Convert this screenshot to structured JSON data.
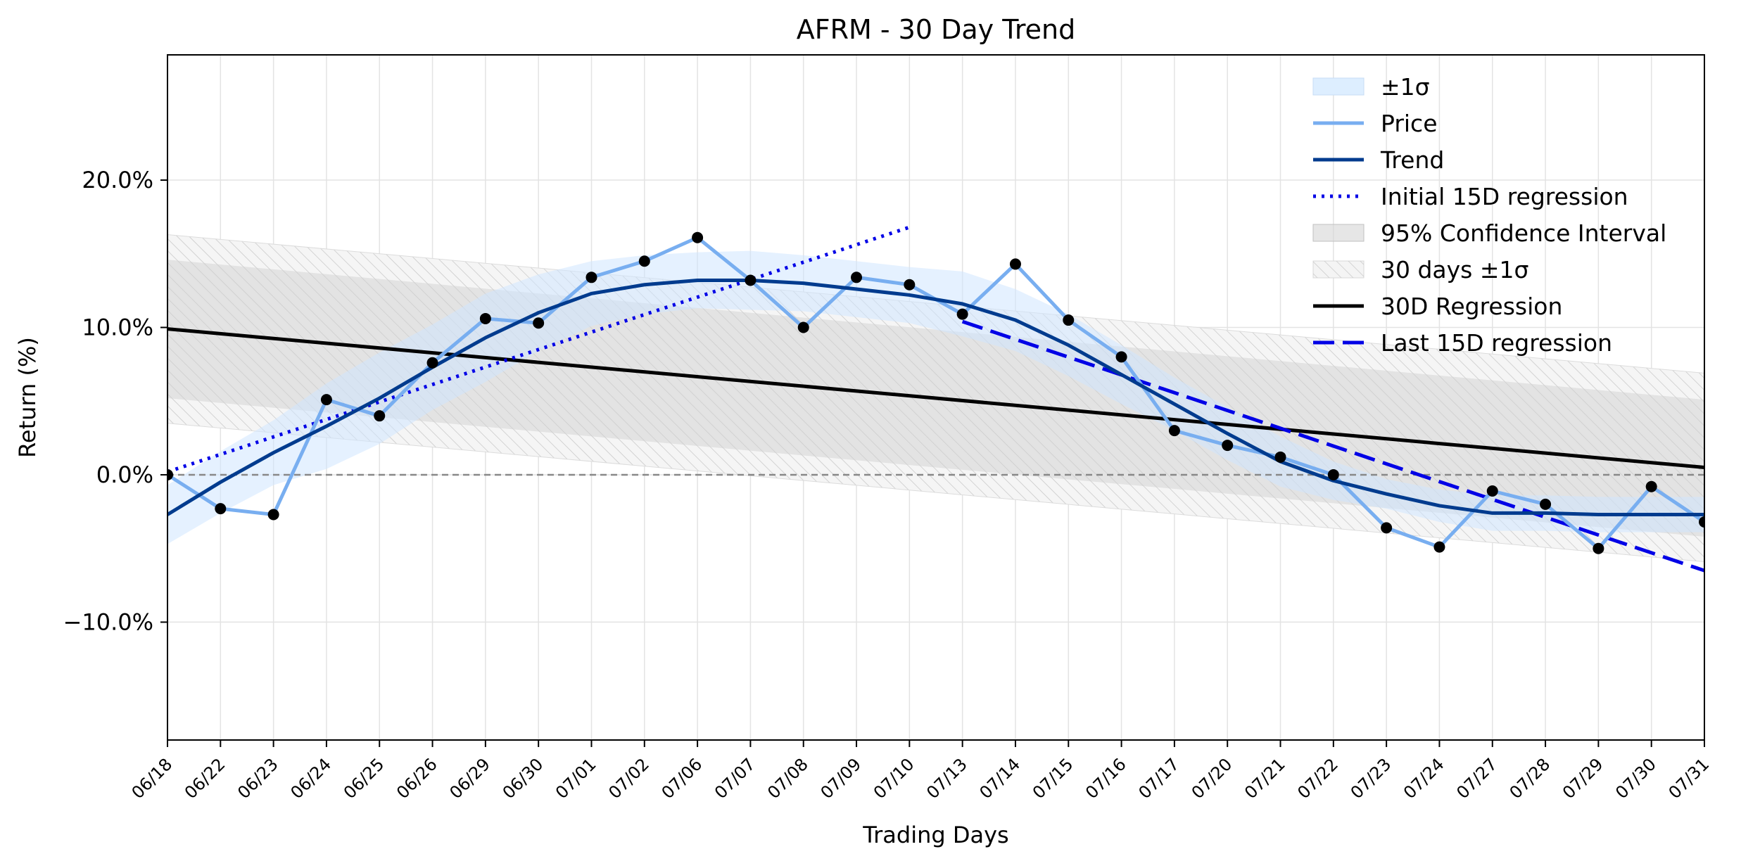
{
  "chart_data": {
    "type": "line",
    "title": "AFRM - 30 Day Trend",
    "xlabel": "Trading Days",
    "ylabel": "Return (%)",
    "ylim": [
      -18,
      28.5
    ],
    "yticks": [
      20,
      10,
      0,
      -10
    ],
    "ytick_labels": [
      "20.0%",
      "10.0%",
      "0.0%",
      "−10.0%"
    ],
    "categories": [
      "06/18",
      "06/22",
      "06/23",
      "06/24",
      "06/25",
      "06/26",
      "06/29",
      "06/30",
      "07/01",
      "07/02",
      "07/06",
      "07/07",
      "07/08",
      "07/09",
      "07/10",
      "07/13",
      "07/14",
      "07/15",
      "07/16",
      "07/17",
      "07/20",
      "07/21",
      "07/22",
      "07/23",
      "07/24",
      "07/27",
      "07/28",
      "07/29",
      "07/30",
      "07/31"
    ],
    "grid": true,
    "legend_position": "top-right",
    "zero_line": true,
    "series": [
      {
        "name": "Price",
        "color": "#78aef0",
        "values": [
          0.0,
          -2.3,
          -2.7,
          5.1,
          4.0,
          7.6,
          10.6,
          10.3,
          13.4,
          14.5,
          16.1,
          13.2,
          10.0,
          13.4,
          12.9,
          10.9,
          14.3,
          10.5,
          8.0,
          3.0,
          2.0,
          1.2,
          0.0,
          -3.6,
          -4.9,
          -1.1,
          -2.0,
          -5.0,
          -0.8,
          -3.2
        ]
      },
      {
        "name": "Trend",
        "color": "#003b8e",
        "values": [
          -2.7,
          -0.5,
          1.5,
          3.3,
          5.2,
          7.3,
          9.3,
          11.0,
          12.3,
          12.9,
          13.2,
          13.2,
          13.0,
          12.6,
          12.2,
          11.6,
          10.5,
          8.8,
          6.8,
          4.8,
          2.8,
          0.9,
          -0.4,
          -1.3,
          -2.1,
          -2.6,
          -2.6,
          -2.7,
          -2.7,
          -2.7
        ]
      },
      {
        "name": "±1σ",
        "color": "#ddeeff",
        "upper": [
          -0.7,
          1.6,
          3.7,
          6.2,
          8.3,
          10.2,
          12.3,
          13.6,
          14.5,
          14.9,
          15.1,
          15.2,
          14.9,
          14.5,
          14.1,
          13.8,
          12.6,
          10.9,
          8.8,
          6.6,
          4.6,
          2.6,
          0.9,
          -0.3,
          -1.0,
          -1.4,
          -1.4,
          -1.5,
          -1.5,
          -1.5
        ],
        "lower": [
          -4.7,
          -2.6,
          -0.7,
          0.4,
          2.1,
          4.4,
          6.3,
          8.4,
          10.1,
          10.9,
          11.3,
          11.2,
          11.1,
          10.7,
          10.3,
          9.4,
          8.4,
          6.7,
          4.8,
          3.0,
          1.0,
          -0.8,
          -1.7,
          -2.3,
          -3.2,
          -3.8,
          -3.8,
          -3.9,
          -3.9,
          -3.9
        ]
      },
      {
        "name": "Initial 15D regression",
        "color": "#0000e6",
        "x_range": [
          0,
          14
        ],
        "y_range": [
          0.2,
          16.8
        ]
      },
      {
        "name": "Last 15D regression",
        "color": "#0000e6",
        "x_range": [
          15,
          29
        ],
        "y_range": [
          10.4,
          -6.5
        ]
      },
      {
        "name": "30D Regression",
        "color": "#000000",
        "x_range": [
          0,
          29
        ],
        "y_range": [
          9.9,
          0.5
        ]
      },
      {
        "name": "95% Confidence Interval",
        "color": "#cccccc",
        "upper": [
          14.6,
          5.1
        ],
        "lower": [
          5.2,
          -4.2
        ]
      },
      {
        "name": "30 days ±1σ",
        "color": "#bbbbbb",
        "upper": [
          16.3,
          6.9
        ],
        "lower": [
          3.5,
          -5.9
        ]
      }
    ],
    "legend": [
      "±1σ",
      "Price",
      "Trend",
      "Initial 15D regression",
      "95% Confidence Interval",
      "30 days ±1σ",
      "30D Regression",
      "Last 15D regression"
    ]
  }
}
